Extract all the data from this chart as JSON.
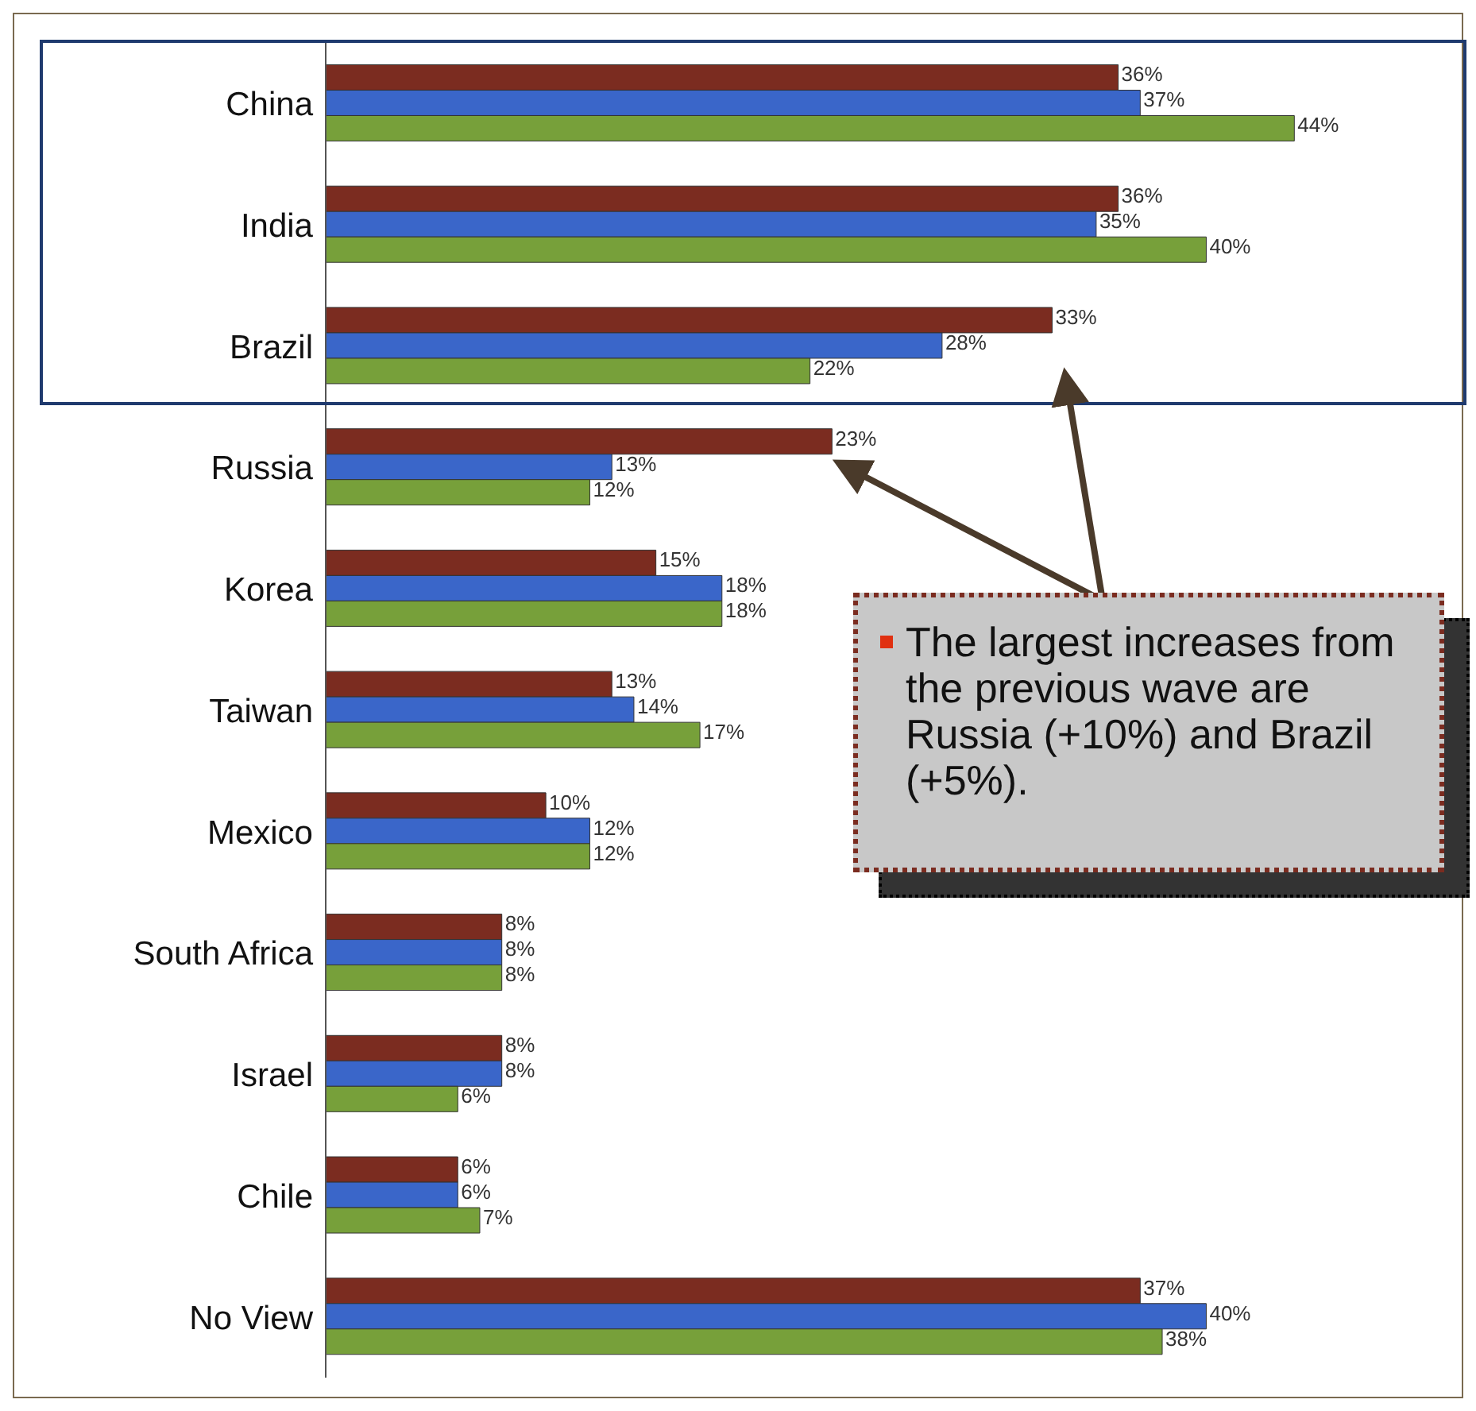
{
  "chart_data": {
    "type": "bar",
    "orientation": "horizontal",
    "categories": [
      "China",
      "India",
      "Brazil",
      "Russia",
      "Korea",
      "Taiwan",
      "Mexico",
      "South Africa",
      "Israel",
      "Chile",
      "No View"
    ],
    "series": [
      {
        "color": "#7b2c20",
        "values": [
          36,
          36,
          33,
          23,
          15,
          13,
          10,
          8,
          8,
          6,
          37
        ],
        "value_labels": [
          "36%",
          "36%",
          "33%",
          "23%",
          "15%",
          "13%",
          "10%",
          "8%",
          "8%",
          "6%",
          "37%"
        ]
      },
      {
        "color": "#3a66c9",
        "values": [
          37,
          35,
          28,
          13,
          18,
          14,
          12,
          8,
          8,
          6,
          40
        ],
        "value_labels": [
          "37%",
          "35%",
          "28%",
          "13%",
          "18%",
          "14%",
          "12%",
          "8%",
          "8%",
          "6%",
          "40%"
        ]
      },
      {
        "color": "#77a03a",
        "values": [
          44,
          40,
          22,
          12,
          18,
          17,
          12,
          8,
          6,
          7,
          38
        ],
        "value_labels": [
          "44%",
          "40%",
          "22%",
          "12%",
          "18%",
          "17%",
          "12%",
          "8%",
          "6%",
          "7%",
          "38%"
        ]
      }
    ],
    "tick_labels": "y",
    "grid": false,
    "legend": false,
    "annotations": [
      "The largest increases from the previous wave are Russia (+10%) and Brazil (+5%)."
    ]
  }
}
